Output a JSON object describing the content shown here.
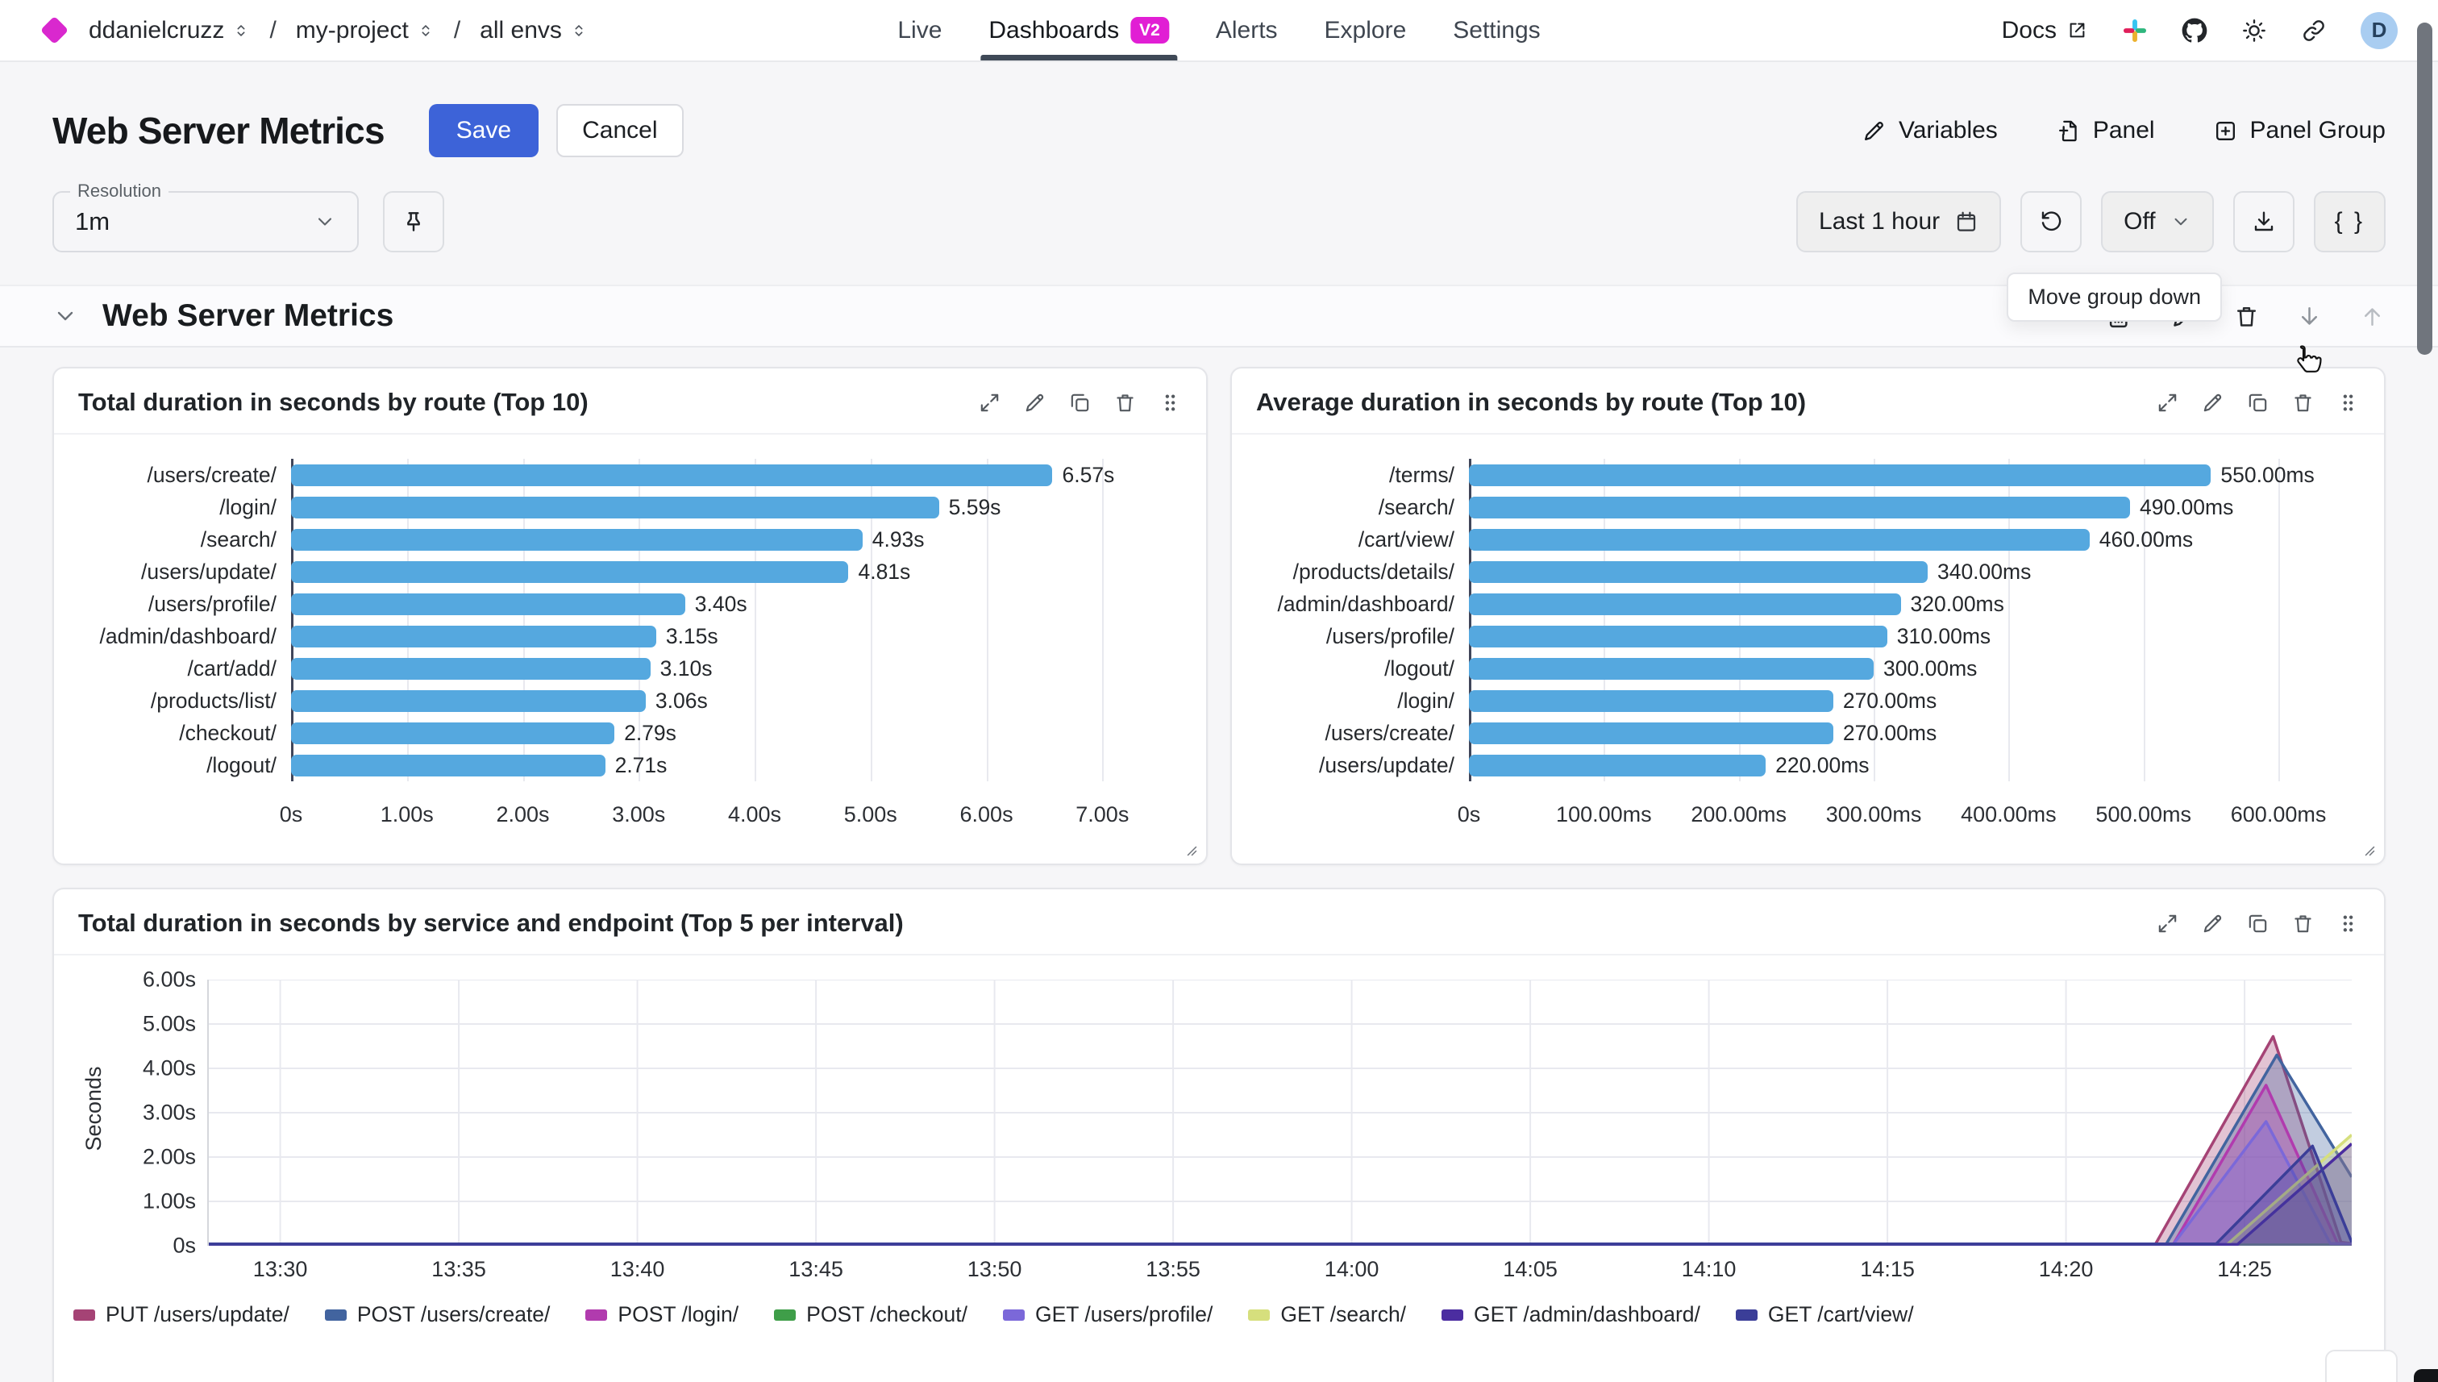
{
  "nav": {
    "breadcrumb": {
      "org": "ddanielcruzz",
      "sep": "/",
      "project": "my-project",
      "env": "all envs"
    },
    "items": [
      "Live",
      "Dashboards",
      "Alerts",
      "Explore",
      "Settings"
    ],
    "dashboards_badge": "V2",
    "docs": "Docs",
    "avatar_initial": "D"
  },
  "header": {
    "title": "Web Server Metrics",
    "save": "Save",
    "cancel": "Cancel",
    "variables": "Variables",
    "panel": "Panel",
    "panel_group": "Panel Group"
  },
  "toolbar": {
    "resolution_label": "Resolution",
    "resolution_value": "1m",
    "time_range": "Last 1 hour",
    "auto_refresh": "Off",
    "braces": "{ }"
  },
  "tooltip": "Move group down",
  "group": {
    "title": "Web Server Metrics"
  },
  "colors": {
    "brand": "#d928ce",
    "accent": "#3d63d8",
    "bar": "#55a8df"
  },
  "chart_data": [
    {
      "type": "bar",
      "orientation": "horizontal",
      "title": "Total duration in seconds by route (Top 10)",
      "unit": "seconds",
      "categories": [
        "/users/create/",
        "/login/",
        "/search/",
        "/users/update/",
        "/users/profile/",
        "/admin/dashboard/",
        "/cart/add/",
        "/products/list/",
        "/checkout/",
        "/logout/"
      ],
      "values": [
        6.57,
        5.59,
        4.93,
        4.81,
        3.4,
        3.15,
        3.1,
        3.06,
        2.79,
        2.71
      ],
      "value_labels": [
        "6.57s",
        "5.59s",
        "4.93s",
        "4.81s",
        "3.40s",
        "3.15s",
        "3.10s",
        "3.06s",
        "2.79s",
        "2.71s"
      ],
      "x_ticks": {
        "values": [
          0,
          1,
          2,
          3,
          4,
          5,
          6,
          7
        ],
        "labels": [
          "0s",
          "1.00s",
          "2.00s",
          "3.00s",
          "4.00s",
          "5.00s",
          "6.00s",
          "7.00s"
        ]
      },
      "xlim": [
        0,
        7.45
      ],
      "bar_color": "#55a8df",
      "grid": true
    },
    {
      "type": "bar",
      "orientation": "horizontal",
      "title": "Average duration in seconds by route (Top 10)",
      "unit": "milliseconds",
      "categories": [
        "/terms/",
        "/search/",
        "/cart/view/",
        "/products/details/",
        "/admin/dashboard/",
        "/users/profile/",
        "/logout/",
        "/login/",
        "/users/create/",
        "/users/update/"
      ],
      "values": [
        550,
        490,
        460,
        340,
        320,
        310,
        300,
        270,
        270,
        220
      ],
      "value_labels": [
        "550.00ms",
        "490.00ms",
        "460.00ms",
        "340.00ms",
        "320.00ms",
        "310.00ms",
        "300.00ms",
        "270.00ms",
        "270.00ms",
        "220.00ms"
      ],
      "x_ticks": {
        "values": [
          0,
          100,
          200,
          300,
          400,
          500,
          600
        ],
        "labels": [
          "0s",
          "100.00ms",
          "200.00ms",
          "300.00ms",
          "400.00ms",
          "500.00ms",
          "600.00ms"
        ]
      },
      "xlim": [
        0,
        640
      ],
      "bar_color": "#55a8df",
      "grid": true
    },
    {
      "type": "area",
      "title": "Total duration in seconds by service and endpoint (Top 5 per interval)",
      "ylabel": "Seconds",
      "ylim": [
        0,
        6
      ],
      "y_ticks": {
        "values": [
          0,
          1,
          2,
          3,
          4,
          5,
          6
        ],
        "labels": [
          "0s",
          "1.00s",
          "2.00s",
          "3.00s",
          "4.00s",
          "5.00s",
          "6.00s"
        ]
      },
      "x_start": "13:28",
      "x_end": "14:28",
      "x_minutes": 60,
      "x_ticks": [
        [
          2,
          "13:30"
        ],
        [
          7,
          "13:35"
        ],
        [
          12,
          "13:40"
        ],
        [
          17,
          "13:45"
        ],
        [
          22,
          "13:50"
        ],
        [
          27,
          "13:55"
        ],
        [
          32,
          "14:00"
        ],
        [
          37,
          "14:05"
        ],
        [
          42,
          "14:10"
        ],
        [
          47,
          "14:15"
        ],
        [
          52,
          "14:20"
        ],
        [
          57,
          "14:25"
        ]
      ],
      "legend_position": "bottom",
      "grid": true,
      "series": [
        {
          "name": "PUT /users/update/",
          "color": "#a54375",
          "points": [
            [
              0,
              0.03
            ],
            [
              54.5,
              0.03
            ],
            [
              57.8,
              4.72
            ],
            [
              59.7,
              0.08
            ],
            [
              60,
              0.05
            ]
          ]
        },
        {
          "name": "POST /users/create/",
          "color": "#42649f",
          "points": [
            [
              0,
              0.03
            ],
            [
              54.8,
              0.03
            ],
            [
              57.9,
              4.3
            ],
            [
              60,
              1.55
            ]
          ]
        },
        {
          "name": "POST /login/",
          "color": "#b13bae",
          "points": [
            [
              0,
              0.03
            ],
            [
              55.0,
              0.03
            ],
            [
              57.6,
              3.62
            ],
            [
              59.6,
              0.06
            ],
            [
              60,
              0.04
            ]
          ]
        },
        {
          "name": "POST /checkout/",
          "color": "#3f9e49",
          "points": [
            [
              0,
              0.02
            ],
            [
              60,
              0.02
            ]
          ]
        },
        {
          "name": "GET /users/profile/",
          "color": "#7b68d9",
          "points": [
            [
              0,
              0.03
            ],
            [
              55.0,
              0.03
            ],
            [
              57.6,
              2.8
            ],
            [
              59.4,
              0.05
            ],
            [
              60,
              0.04
            ]
          ]
        },
        {
          "name": "GET /search/",
          "color": "#d6df7d",
          "points": [
            [
              0,
              0.02
            ],
            [
              56.5,
              0.02
            ],
            [
              60,
              2.5
            ]
          ]
        },
        {
          "name": "GET /admin/dashboard/",
          "color": "#4b2da0",
          "points": [
            [
              0,
              0.03
            ],
            [
              56.8,
              0.03
            ],
            [
              60,
              2.3
            ]
          ]
        },
        {
          "name": "GET /cart/view/",
          "color": "#3b3e98",
          "points": [
            [
              0,
              0.04
            ],
            [
              56.2,
              0.04
            ],
            [
              58.9,
              2.25
            ],
            [
              60,
              0.08
            ]
          ]
        }
      ]
    }
  ]
}
